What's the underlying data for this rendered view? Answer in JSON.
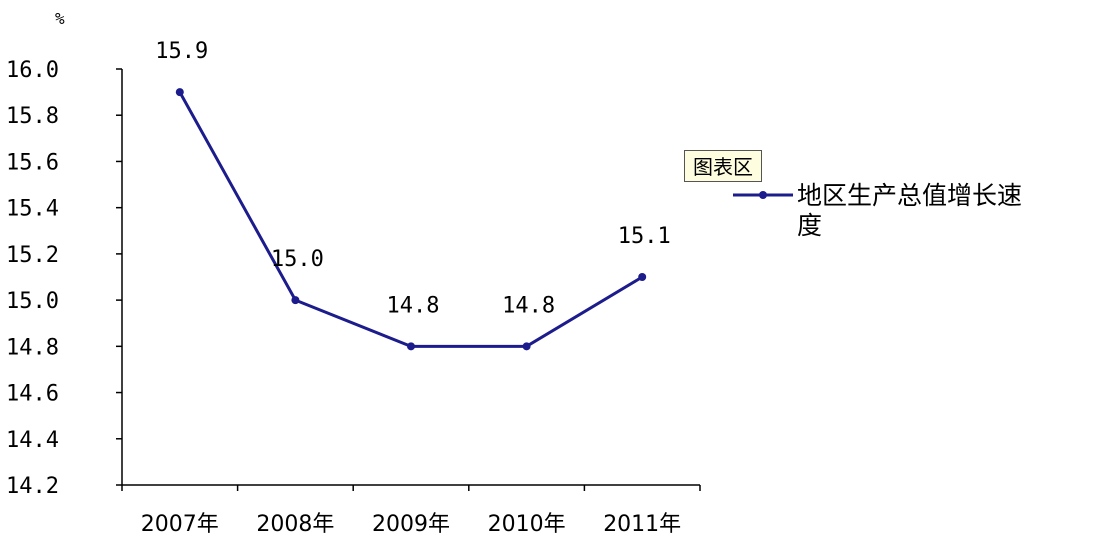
{
  "chart_data": {
    "type": "line",
    "categories": [
      "2007年",
      "2008年",
      "2009年",
      "2010年",
      "2011年"
    ],
    "series": [
      {
        "name": "地区生产总值增长速度",
        "values": [
          15.9,
          15.0,
          14.8,
          14.8,
          15.1
        ],
        "data_labels": [
          "15.9",
          "15.0",
          "14.8",
          "14.8",
          "15.1"
        ],
        "color": "#1c1c8c"
      }
    ],
    "y_unit": "%",
    "ylim": [
      14.2,
      16.0
    ],
    "y_ticks": [
      "16.0",
      "15.8",
      "15.6",
      "15.4",
      "15.2",
      "15.0",
      "14.8",
      "14.6",
      "14.4",
      "14.2"
    ],
    "grid": false,
    "legend": {
      "position": "right",
      "label_lines": [
        "地区生产总值增长速",
        "度"
      ]
    },
    "tooltip": "图表区"
  }
}
